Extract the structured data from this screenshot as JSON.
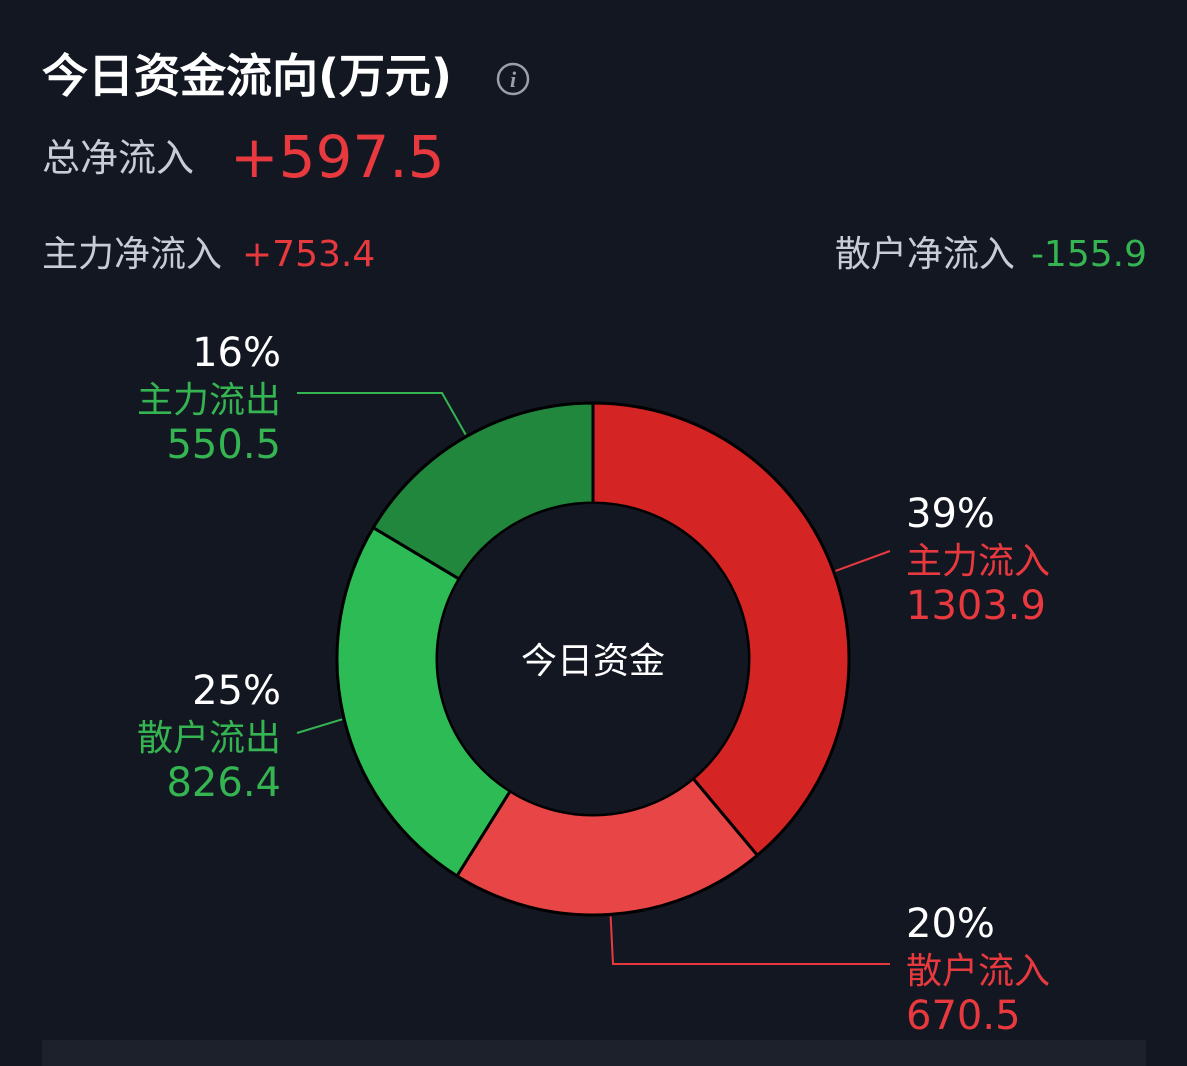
{
  "header": {
    "title": "今日资金流向(万元)",
    "info_icon": "info-icon"
  },
  "summary": {
    "total_label": "总净流入",
    "total_value": "+597.5",
    "main_label": "主力净流入",
    "main_value": "+753.4",
    "retail_label": "散户净流入",
    "retail_value": "-155.9"
  },
  "colors": {
    "background": "#131722",
    "inflow_text": "#e8393e",
    "outflow_text": "#35b551",
    "main_in": "#d42424",
    "retail_in": "#e84646",
    "main_out": "#20873c",
    "retail_out": "#2dbb55"
  },
  "chart_data": {
    "type": "pie",
    "center_label": "今日资金",
    "slices": [
      {
        "label": "主力流入",
        "value": 1303.9,
        "value_text": "1303.9",
        "percent_text": "39%",
        "color": "#d42424",
        "text_color": "#e8393e"
      },
      {
        "label": "散户流入",
        "value": 670.5,
        "value_text": "670.5",
        "percent_text": "20%",
        "color": "#e84646",
        "text_color": "#e8393e"
      },
      {
        "label": "散户流出",
        "value": 826.4,
        "value_text": "826.4",
        "percent_text": "25%",
        "color": "#2dbb55",
        "text_color": "#35b551"
      },
      {
        "label": "主力流出",
        "value": 550.5,
        "value_text": "550.5",
        "percent_text": "16%",
        "color": "#20873c",
        "text_color": "#35b551"
      }
    ]
  }
}
